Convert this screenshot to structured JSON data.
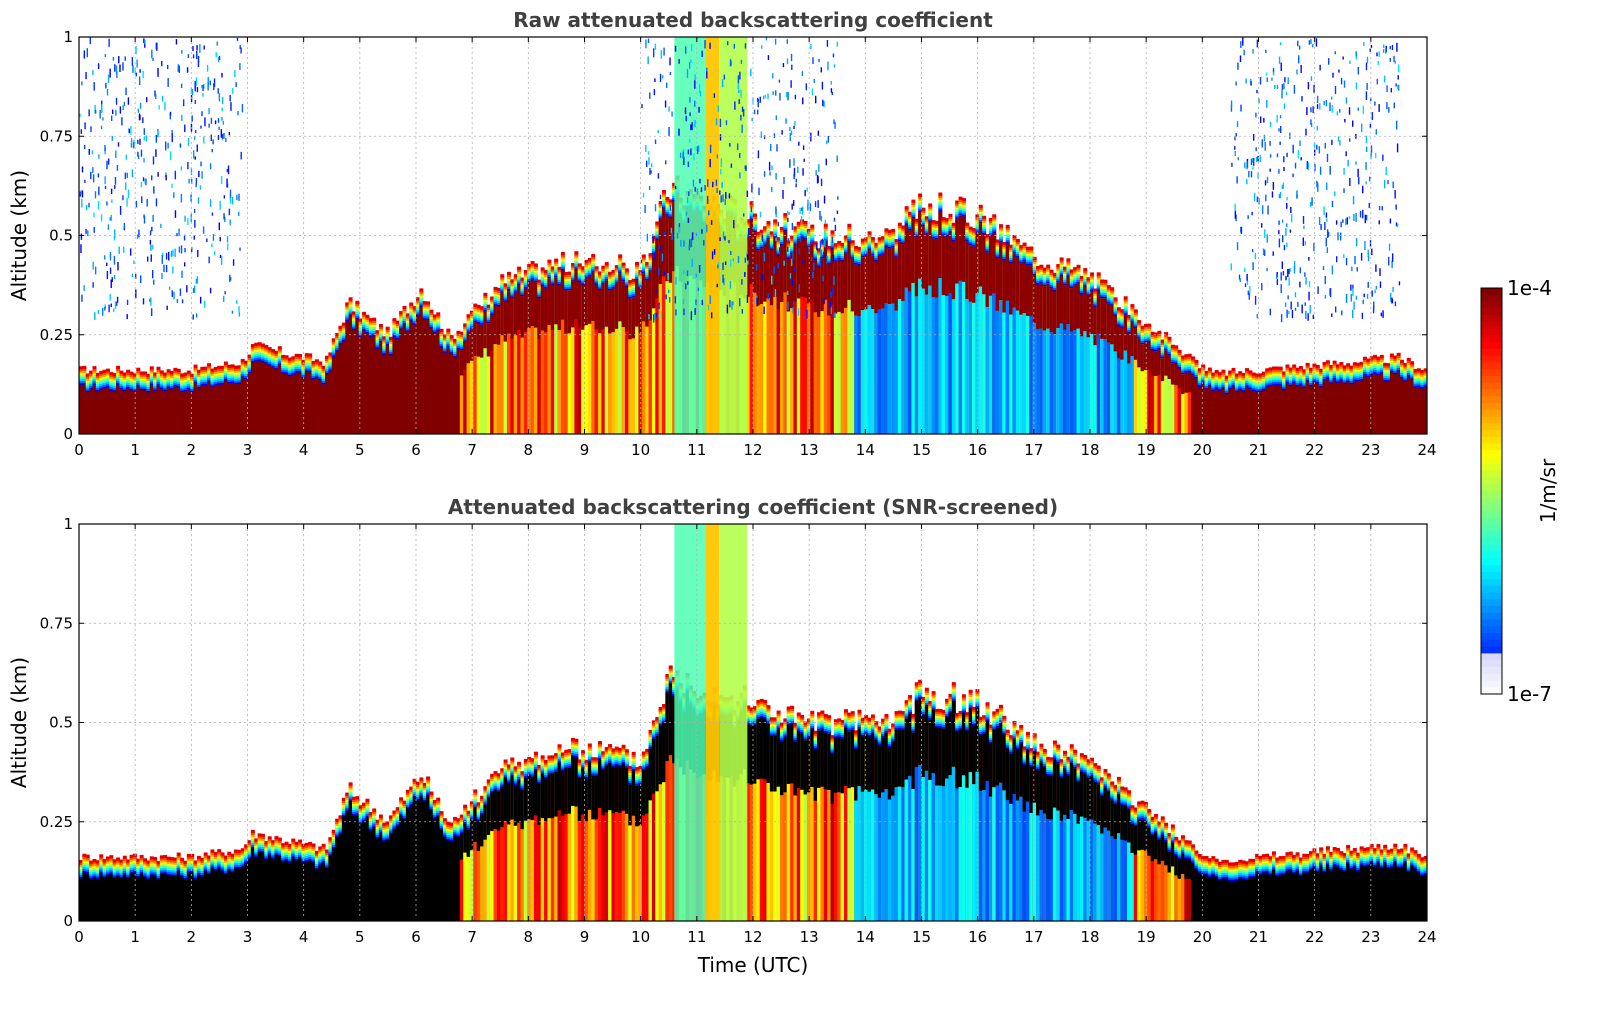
{
  "chart_data": [
    {
      "type": "heatmap",
      "title": "Raw attenuated backscattering coefficient",
      "ylabel": "Altitude (km)",
      "xlabel": "",
      "xlim": [
        0,
        24
      ],
      "ylim": [
        0,
        1
      ],
      "xticks": [
        "0",
        "1",
        "2",
        "3",
        "4",
        "5",
        "6",
        "7",
        "8",
        "9",
        "10",
        "11",
        "12",
        "13",
        "14",
        "15",
        "16",
        "17",
        "18",
        "19",
        "20",
        "21",
        "22",
        "23",
        "24"
      ],
      "yticks": [
        "0",
        "0.25",
        "0.5",
        "0.75",
        "1"
      ],
      "grid": true,
      "screened": false
    },
    {
      "type": "heatmap",
      "title": "Attenuated backscattering coefficient (SNR-screened)",
      "ylabel": "Altitude (km)",
      "xlabel": "Time (UTC)",
      "xlim": [
        0,
        24
      ],
      "ylim": [
        0,
        1
      ],
      "xticks": [
        "0",
        "1",
        "2",
        "3",
        "4",
        "5",
        "6",
        "7",
        "8",
        "9",
        "10",
        "11",
        "12",
        "13",
        "14",
        "15",
        "16",
        "17",
        "18",
        "19",
        "20",
        "21",
        "22",
        "23",
        "24"
      ],
      "yticks": [
        "0",
        "0.25",
        "0.5",
        "0.75",
        "1"
      ],
      "grid": true,
      "screened": true
    }
  ],
  "colorbar": {
    "max_label": "1e-4",
    "min_label": "1e-7",
    "label": "1/m/sr",
    "colormap": "jet"
  },
  "aerosol_layer_top_km": {
    "hours": [
      0,
      2,
      2.9,
      3.1,
      4.4,
      4.8,
      5.5,
      6.1,
      6.6,
      7.5,
      8.5,
      9.5,
      10.0,
      10.5,
      12.0,
      13.0,
      14.5,
      15.0,
      16.0,
      17.0,
      18.0,
      19.0,
      19.8,
      20.2,
      23.5,
      24
    ],
    "km": [
      0.16,
      0.16,
      0.18,
      0.22,
      0.18,
      0.33,
      0.25,
      0.37,
      0.24,
      0.38,
      0.43,
      0.43,
      0.4,
      0.62,
      0.55,
      0.5,
      0.5,
      0.58,
      0.55,
      0.45,
      0.4,
      0.28,
      0.19,
      0.15,
      0.19,
      0.16
    ]
  }
}
